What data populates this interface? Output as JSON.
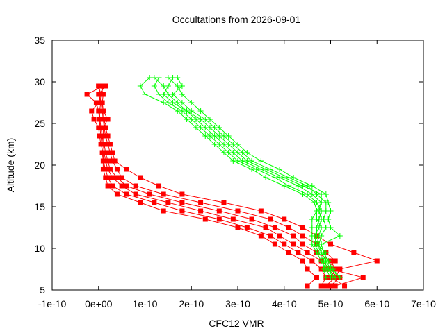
{
  "chart_data": {
    "type": "line",
    "title": "Occultations from 2026-09-01",
    "xlabel": "CFC12 VMR",
    "ylabel": "Altitude (km)",
    "xlim": [
      -1e-10,
      7e-10
    ],
    "ylim": [
      5,
      35
    ],
    "x_ticks": [
      "-1e-10",
      "0e+00",
      "1e-10",
      "2e-10",
      "3e-10",
      "4e-10",
      "5e-10",
      "6e-10",
      "7e-10"
    ],
    "y_ticks": [
      "5",
      "10",
      "15",
      "20",
      "25",
      "30",
      "35"
    ],
    "grid": false,
    "legend": "none",
    "colors": {
      "red": "#ff0000",
      "green": "#00ff00",
      "axis": "#000000"
    },
    "series": [
      {
        "color": "#ff0000",
        "marker": "square",
        "y": [
          5.5,
          6.5,
          7.5,
          8.5,
          9.5,
          10.5,
          11.5,
          12.5,
          13.5,
          14.5,
          15.5,
          16.5,
          17.5,
          18.5,
          19.5,
          20.5,
          21.5,
          22.5,
          23.5,
          24.5,
          25.5,
          26.5,
          27.5,
          28.5,
          29.5
        ],
        "profiles": [
          [
            4.5e-10,
            4.7e-10,
            4.5e-10,
            4.4e-10,
            4.1e-10,
            3.8e-10,
            3.5e-10,
            3e-10,
            2.3e-10,
            1.4e-10,
            9e-11,
            4e-11,
            2e-11,
            1.5e-11,
            1e-11,
            1e-11,
            8e-12,
            7e-12,
            5e-12,
            3e-12,
            2e-12,
            0.0,
            -5e-12,
            -2.5e-11,
            1e-11
          ],
          [
            4.8e-10,
            4.9e-10,
            4.8e-10,
            4.6e-10,
            4.3e-10,
            4e-10,
            3.7e-10,
            3.2e-10,
            2.6e-10,
            1.8e-10,
            1.2e-10,
            6e-11,
            3e-11,
            2e-11,
            1.5e-11,
            1e-11,
            1e-11,
            5e-12,
            2e-12,
            0.0,
            -1e-11,
            -1.5e-11,
            0.0,
            5e-12,
            0.0
          ],
          [
            5.1e-10,
            5.7e-10,
            5e-10,
            4.8e-10,
            4.5e-10,
            4.2e-10,
            3.9e-10,
            3.6e-10,
            2.9e-10,
            2.2e-10,
            1.5e-10,
            8e-11,
            5e-11,
            3e-11,
            2e-11,
            1.5e-11,
            1.2e-11,
            1e-11,
            8e-12,
            5e-12,
            3e-12,
            2e-12,
            5e-12,
            0.0,
            1.5e-11
          ],
          [
            5.3e-10,
            5e-10,
            5.1e-10,
            5e-10,
            4.7e-10,
            4.4e-10,
            4.2e-10,
            3.8e-10,
            3.3e-10,
            2.6e-10,
            1.8e-10,
            1.1e-10,
            6e-11,
            4e-11,
            2.5e-11,
            2e-11,
            1.5e-11,
            1.2e-11,
            1e-11,
            1e-11,
            2e-11,
            1e-11,
            8e-12,
            1e-11,
            5e-12
          ],
          [
            5e-10,
            5.2e-10,
            4.9e-10,
            5.1e-10,
            4.9e-10,
            4.7e-10,
            4.4e-10,
            4.1e-10,
            3.7e-10,
            3e-10,
            2.2e-10,
            1.4e-10,
            8e-11,
            5e-11,
            4e-11,
            3e-11,
            2.5e-11,
            2e-11,
            1.5e-11,
            1.2e-11,
            1e-11,
            8e-12,
            5e-12,
            3e-12,
            0.0
          ],
          [
            4.9e-10,
            5.1e-10,
            5.2e-10,
            6e-10,
            5.5e-10,
            5e-10,
            4.7e-10,
            4.4e-10,
            4e-10,
            3.5e-10,
            2.7e-10,
            1.8e-10,
            1.3e-10,
            9e-11,
            6e-11,
            3.5e-11,
            3e-11,
            2.5e-11,
            2e-11,
            1.5e-11,
            1.2e-11,
            1e-11,
            8e-12,
            6e-12,
            1e-11
          ]
        ]
      },
      {
        "color": "#00ff00",
        "marker": "plus",
        "y": [
          6.5,
          7.5,
          8.5,
          9.5,
          10.5,
          11.5,
          12.5,
          13.5,
          14.5,
          15.5,
          16.5,
          17.5,
          18.5,
          19.5,
          20.5,
          21.5,
          22.5,
          23.5,
          24.5,
          25.5,
          26.5,
          27.5,
          28.5,
          29.5,
          30.5
        ],
        "profiles": [
          [
            5.2e-10,
            5e-10,
            4.9e-10,
            4.8e-10,
            4.7e-10,
            4.75e-10,
            4.8e-10,
            4.7e-10,
            4.7e-10,
            4.65e-10,
            4.4e-10,
            4e-10,
            3.6e-10,
            3.3e-10,
            2.9e-10,
            2.7e-10,
            2.5e-10,
            2.3e-10,
            2.1e-10,
            1.9e-10,
            1.7e-10,
            1.4e-10,
            1e-10,
            9e-11,
            1.1e-10
          ],
          [
            5.1e-10,
            4.95e-10,
            4.85e-10,
            4.75e-10,
            4.65e-10,
            4.7e-10,
            4.7e-10,
            4.75e-10,
            4.8e-10,
            4.7e-10,
            4.5e-10,
            4.1e-10,
            3.8e-10,
            3.4e-10,
            3e-10,
            2.8e-10,
            2.6e-10,
            2.4e-10,
            2.2e-10,
            2e-10,
            1.8e-10,
            1.5e-10,
            1.3e-10,
            1.2e-10,
            1.3e-10
          ],
          [
            5e-10,
            4.9e-10,
            4.8e-10,
            4.7e-10,
            4.6e-10,
            4.6e-10,
            4.6e-10,
            4.6e-10,
            4.7e-10,
            4.8e-10,
            4.6e-10,
            4.3e-10,
            3.9e-10,
            3.5e-10,
            3.1e-10,
            2.9e-10,
            2.7e-10,
            2.5e-10,
            2.3e-10,
            2.1e-10,
            1.9e-10,
            1.6e-10,
            1.4e-10,
            1.5e-10,
            1.6e-10
          ],
          [
            4.9e-10,
            4.85e-10,
            4.9e-10,
            4.8e-10,
            4.75e-10,
            4.8e-10,
            4.9e-10,
            4.85e-10,
            4.9e-10,
            4.9e-10,
            4.7e-10,
            4.5e-10,
            4.1e-10,
            3.7e-10,
            3.3e-10,
            3.1e-10,
            2.9e-10,
            2.7e-10,
            2.5e-10,
            2.3e-10,
            2e-10,
            1.8e-10,
            1.6e-10,
            1.8e-10,
            1.7e-10
          ],
          [
            5.2e-10,
            5.05e-10,
            4.95e-10,
            4.85e-10,
            4.8e-10,
            5.2e-10,
            5e-10,
            4.95e-10,
            5e-10,
            4.95e-10,
            4.9e-10,
            4.6e-10,
            4.2e-10,
            3.9e-10,
            3.5e-10,
            3.2e-10,
            3e-10,
            2.8e-10,
            2.6e-10,
            2.4e-10,
            2.2e-10,
            2e-10,
            1.8e-10,
            1.7e-10,
            1.5e-10
          ],
          [
            5.05e-10,
            4.95e-10,
            4.85e-10,
            4.9e-10,
            4.7e-10,
            4.65e-10,
            4.75e-10,
            4.8e-10,
            4.75e-10,
            4.8e-10,
            4.8e-10,
            4.4e-10,
            4e-10,
            3.6e-10,
            3.2e-10,
            3e-10,
            2.8e-10,
            2.6e-10,
            2.4e-10,
            2.2e-10,
            1.9e-10,
            1.7e-10,
            1.5e-10,
            1.4e-10,
            1.2e-10
          ]
        ]
      }
    ]
  }
}
